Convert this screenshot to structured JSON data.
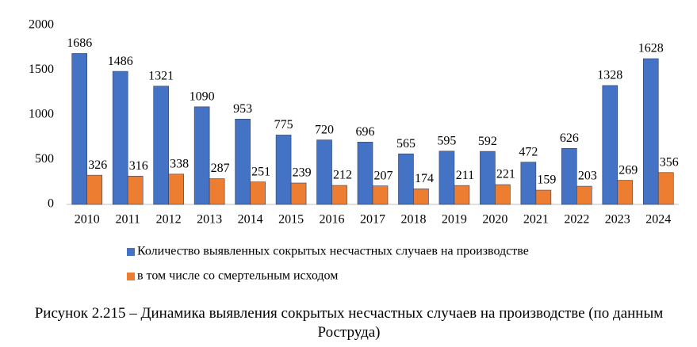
{
  "chart_data": {
    "type": "bar",
    "categories": [
      "2010",
      "2011",
      "2012",
      "2013",
      "2014",
      "2015",
      "2016",
      "2017",
      "2018",
      "2019",
      "2020",
      "2021",
      "2022",
      "2023",
      "2024"
    ],
    "series": [
      {
        "name": "Количество выявленных сокрытых несчастных случаев на производстве",
        "color": "#4472c4",
        "values": [
          1686,
          1486,
          1321,
          1090,
          953,
          775,
          720,
          696,
          565,
          595,
          592,
          472,
          626,
          1328,
          1628
        ]
      },
      {
        "name": "в том числе со смертельным исходом",
        "color": "#ed7d31",
        "values": [
          326,
          316,
          338,
          287,
          251,
          239,
          212,
          207,
          174,
          211,
          221,
          159,
          203,
          269,
          356
        ]
      }
    ],
    "ylim": [
      0,
      2000
    ],
    "yticks": [
      0,
      500,
      1000,
      1500,
      2000
    ],
    "grid": false,
    "caption": "Рисунок 2.215 – Динамика выявления сокрытых несчастных случаев на производстве (по данным Роструда)"
  }
}
